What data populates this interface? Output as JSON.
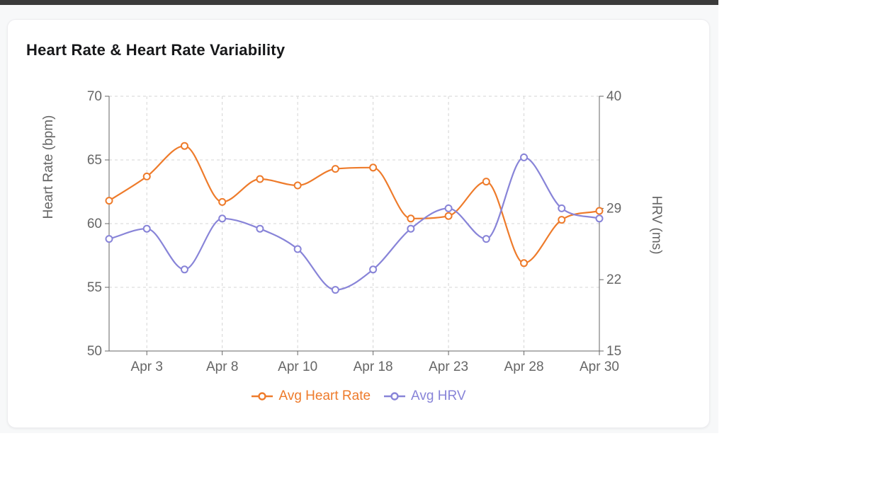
{
  "page": {
    "background_color": "#f7f8f9",
    "top_edge_color": "#3a3a3a"
  },
  "card": {
    "title": "Heart Rate & Heart Rate Variability"
  },
  "chart_data": {
    "type": "line",
    "title": "Heart Rate & Heart Rate Variability",
    "num_points": 14,
    "x_tick_labels": [
      "Apr 3",
      "Apr 8",
      "Apr 10",
      "Apr 18",
      "Apr 23",
      "Apr 28",
      "Apr 30"
    ],
    "x_tick_point_indices": [
      1,
      3,
      5,
      7,
      9,
      11,
      13
    ],
    "left_axis": {
      "label": "Heart Rate (bpm)",
      "range": [
        50,
        70
      ],
      "ticks": [
        50,
        55,
        60,
        65,
        70
      ]
    },
    "right_axis": {
      "label": "HRV (ms)",
      "range": [
        15,
        40
      ],
      "ticks": [
        15,
        22,
        29,
        40
      ]
    },
    "grid": "dashed",
    "legend_position": "bottom",
    "series": [
      {
        "name": "Avg Heart Rate",
        "yaxis": "left",
        "color": "#ee7b2b",
        "values": [
          61.8,
          63.7,
          66.1,
          61.7,
          63.5,
          63.0,
          64.3,
          64.4,
          60.4,
          60.6,
          63.3,
          56.9,
          60.3,
          61.0
        ]
      },
      {
        "name": "Avg HRV",
        "yaxis": "right",
        "color": "#8884d8",
        "values": [
          26,
          27,
          23,
          28,
          27,
          25,
          21,
          23,
          27,
          29,
          26,
          34,
          29,
          28
        ]
      }
    ],
    "style": {
      "axis_line_color": "#666666",
      "axis_text_color": "#666666",
      "grid_color": "#d4d4d4",
      "marker_fill": "#ffffff"
    }
  }
}
